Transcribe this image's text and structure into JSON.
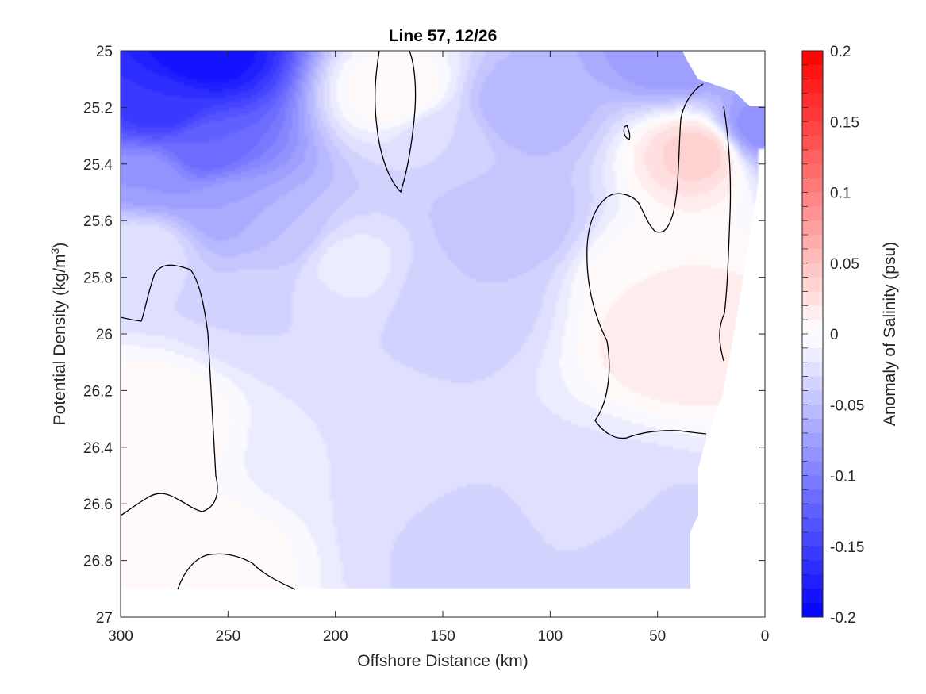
{
  "chart_data": {
    "type": "heatmap",
    "subtype": "filled-contour",
    "title": "Line 57, 12/26",
    "xlabel": "Offshore Distance (km)",
    "ylabel_main": "Potential Density (kg/m",
    "ylabel_sup": "3",
    "ylabel_close": ")",
    "colorbar_label": "Anomaly of Salinity (psu)",
    "xlim": [
      300,
      0
    ],
    "ylim": [
      25,
      27
    ],
    "y_reversed": true,
    "x_reversed": true,
    "xticks": [
      "300",
      "250",
      "200",
      "150",
      "100",
      "50",
      "0"
    ],
    "yticks": [
      "25",
      "25.2",
      "25.4",
      "25.6",
      "25.8",
      "26",
      "26.2",
      "26.4",
      "26.6",
      "26.8",
      "27"
    ],
    "clim": [
      -0.2,
      0.2
    ],
    "colorbar_ticks": [
      "0.2",
      "0.15",
      "0.1",
      "0.05",
      "0",
      "-0.05",
      "-0.1",
      "-0.15",
      "-0.2"
    ],
    "colorbar_levels": 40,
    "colormap": {
      "low": "#0000ff",
      "mid": "#ffffff",
      "high": "#ff0000"
    },
    "contour_color": "#000000",
    "data_coverage": {
      "x_start_km": 300,
      "x_end_km": 35,
      "ymax_kg_m3": 26.9
    },
    "features": [
      {
        "x": 262,
        "y": 25.02,
        "value": -0.19
      },
      {
        "x": 280,
        "y": 25.2,
        "value": -0.16
      },
      {
        "x": 262,
        "y": 25.35,
        "value": -0.12
      },
      {
        "x": 285,
        "y": 25.45,
        "value": -0.08
      },
      {
        "x": 250,
        "y": 25.55,
        "value": -0.07
      },
      {
        "x": 225,
        "y": 25.65,
        "value": -0.05
      },
      {
        "x": 230,
        "y": 25.9,
        "value": -0.03
      },
      {
        "x": 170,
        "y": 25.15,
        "value": 0.01
      },
      {
        "x": 150,
        "y": 25.3,
        "value": -0.03
      },
      {
        "x": 140,
        "y": 25.85,
        "value": -0.04
      },
      {
        "x": 115,
        "y": 25.2,
        "value": -0.06
      },
      {
        "x": 120,
        "y": 25.6,
        "value": -0.05
      },
      {
        "x": 40,
        "y": 25.02,
        "value": -0.08
      },
      {
        "x": 5,
        "y": 25.28,
        "value": -0.09
      },
      {
        "x": 28,
        "y": 25.35,
        "value": 0.04
      },
      {
        "x": 52,
        "y": 25.8,
        "value": 0.01
      },
      {
        "x": 40,
        "y": 26.0,
        "value": 0.02
      },
      {
        "x": 285,
        "y": 26.3,
        "value": 0.01
      },
      {
        "x": 150,
        "y": 26.7,
        "value": -0.03
      },
      {
        "x": 130,
        "y": 26.8,
        "value": -0.035
      },
      {
        "x": 60,
        "y": 26.78,
        "value": -0.04
      },
      {
        "x": 200,
        "y": 26.4,
        "value": -0.02
      },
      {
        "x": 195,
        "y": 25.75,
        "value": -0.015
      },
      {
        "x": 80,
        "y": 26.65,
        "value": -0.025
      },
      {
        "x": 255,
        "y": 26.8,
        "value": 0.005
      },
      {
        "x": 290,
        "y": 25.7,
        "value": -0.02
      }
    ]
  }
}
